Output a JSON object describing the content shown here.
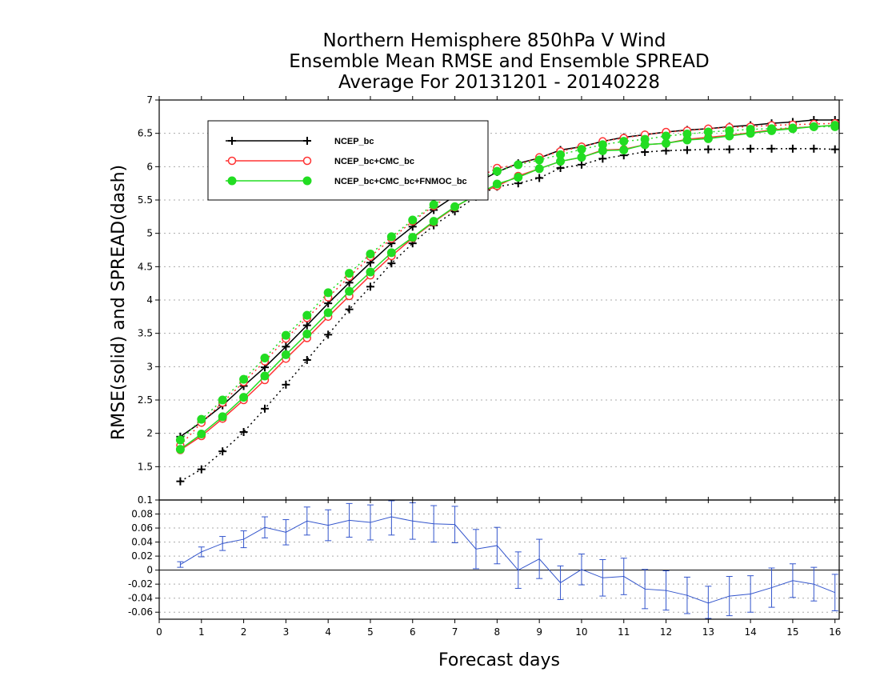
{
  "chart_data": [
    {
      "type": "line",
      "title_lines": [
        "Northern Hemisphere 850hPa V Wind",
        "Ensemble Mean RMSE and Ensemble SPREAD",
        "Average For 20131201 - 20140228"
      ],
      "ylabel": "RMSE(solid) and SPREAD(dash)",
      "xlim": [
        0,
        16.1
      ],
      "ylim": [
        1.0,
        7.0
      ],
      "x_ticks": [
        "0",
        "1",
        "2",
        "3",
        "4",
        "5",
        "6",
        "7",
        "8",
        "9",
        "10",
        "11",
        "12",
        "13",
        "14",
        "15",
        "16"
      ],
      "y_ticks": [
        "1.5",
        "2",
        "2.5",
        "3",
        "3.5",
        "4",
        "4.5",
        "5",
        "5.5",
        "6",
        "6.5",
        "7"
      ],
      "legend_position": "top-left",
      "x": [
        0.5,
        1,
        1.5,
        2,
        2.5,
        3,
        3.5,
        4,
        4.5,
        5,
        5.5,
        6,
        6.5,
        7,
        7.5,
        8,
        8.5,
        9,
        9.5,
        10,
        10.5,
        11,
        11.5,
        12,
        12.5,
        13,
        13.5,
        14,
        14.5,
        15,
        15.5,
        16
      ],
      "series": [
        {
          "name": "NCEP_bc",
          "color": "#000000",
          "marker": "plus",
          "rmse": [
            1.95,
            2.17,
            2.42,
            2.71,
            2.99,
            3.3,
            3.62,
            3.95,
            4.26,
            4.56,
            4.85,
            5.1,
            5.35,
            5.56,
            5.75,
            5.92,
            6.05,
            6.13,
            6.25,
            6.3,
            6.38,
            6.44,
            6.48,
            6.52,
            6.55,
            6.57,
            6.6,
            6.62,
            6.65,
            6.67,
            6.7,
            6.7
          ],
          "spread": [
            1.28,
            1.46,
            1.73,
            2.02,
            2.37,
            2.73,
            3.1,
            3.48,
            3.86,
            4.2,
            4.55,
            4.85,
            5.12,
            5.33,
            5.55,
            5.7,
            5.75,
            5.83,
            5.98,
            6.03,
            6.12,
            6.17,
            6.22,
            6.24,
            6.25,
            6.26,
            6.26,
            6.27,
            6.27,
            6.27,
            6.27,
            6.26
          ]
        },
        {
          "name": "NCEP_bc+CMC_bc",
          "color": "#ff3333",
          "marker": "open-circle",
          "rmse": [
            1.75,
            1.96,
            2.22,
            2.5,
            2.8,
            3.12,
            3.43,
            3.75,
            4.06,
            4.37,
            4.66,
            4.93,
            5.17,
            5.39,
            5.58,
            5.71,
            5.86,
            5.97,
            6.08,
            6.14,
            6.25,
            6.26,
            6.33,
            6.35,
            6.41,
            6.44,
            6.47,
            6.51,
            6.55,
            6.58,
            6.6,
            6.62
          ],
          "spread": [
            1.82,
            2.16,
            2.46,
            2.77,
            3.08,
            3.42,
            3.73,
            4.04,
            4.35,
            4.65,
            4.92,
            5.18,
            5.41,
            5.62,
            5.82,
            5.98,
            6.03,
            6.14,
            6.23,
            6.3,
            6.38,
            6.43,
            6.48,
            6.52,
            6.54,
            6.57,
            6.59,
            6.6,
            6.62,
            6.63,
            6.64,
            6.65
          ]
        },
        {
          "name": "NCEP_bc+CMC_bc+FNMOC_bc",
          "color": "#22dd22",
          "marker": "filled-circle",
          "rmse": [
            1.76,
            1.99,
            2.25,
            2.54,
            2.86,
            3.18,
            3.49,
            3.81,
            4.13,
            4.42,
            4.71,
            4.94,
            5.18,
            5.4,
            5.57,
            5.74,
            5.84,
            5.97,
            6.08,
            6.14,
            6.24,
            6.25,
            6.33,
            6.35,
            6.4,
            6.42,
            6.46,
            6.5,
            6.54,
            6.57,
            6.6,
            6.62
          ],
          "spread": [
            1.9,
            2.21,
            2.5,
            2.81,
            3.13,
            3.47,
            3.77,
            4.11,
            4.4,
            4.69,
            4.95,
            5.2,
            5.43,
            5.63,
            5.8,
            5.93,
            6.03,
            6.1,
            6.18,
            6.26,
            6.33,
            6.38,
            6.41,
            6.46,
            6.49,
            6.52,
            6.54,
            6.56,
            6.57,
            6.58,
            6.6,
            6.6
          ]
        }
      ]
    },
    {
      "type": "line",
      "description_of_panel": "difference with error bars",
      "xlabel": "Forecast days",
      "xlim": [
        0,
        16.1
      ],
      "ylim": [
        -0.07,
        0.1
      ],
      "y_ticks": [
        "-0.06",
        "-0.04",
        "-0.02",
        "0",
        "0.02",
        "0.04",
        "0.06",
        "0.08",
        "0.1"
      ],
      "series": [
        {
          "color": "#3355cc",
          "x": [
            0.5,
            1,
            1.5,
            2,
            2.5,
            3,
            3.5,
            4,
            4.5,
            5,
            5.5,
            6,
            6.5,
            7,
            7.5,
            8,
            8.5,
            9,
            9.5,
            10,
            10.5,
            11,
            11.5,
            12,
            12.5,
            13,
            13.5,
            14,
            14.5,
            15,
            15.5,
            16
          ],
          "y": [
            0.008,
            0.026,
            0.038,
            0.044,
            0.061,
            0.054,
            0.07,
            0.064,
            0.071,
            0.068,
            0.076,
            0.07,
            0.066,
            0.065,
            0.03,
            0.035,
            0,
            0.016,
            -0.018,
            0.001,
            -0.011,
            -0.009,
            -0.027,
            -0.029,
            -0.036,
            -0.047,
            -0.037,
            -0.034,
            -0.025,
            -0.015,
            -0.02,
            -0.032
          ],
          "err": [
            0.004,
            0.007,
            0.01,
            0.012,
            0.015,
            0.018,
            0.02,
            0.022,
            0.024,
            0.025,
            0.026,
            0.026,
            0.026,
            0.026,
            0.028,
            0.026,
            0.026,
            0.028,
            0.024,
            0.022,
            0.026,
            0.026,
            0.028,
            0.028,
            0.026,
            0.024,
            0.028,
            0.026,
            0.028,
            0.024,
            0.024,
            0.026
          ]
        }
      ]
    }
  ]
}
